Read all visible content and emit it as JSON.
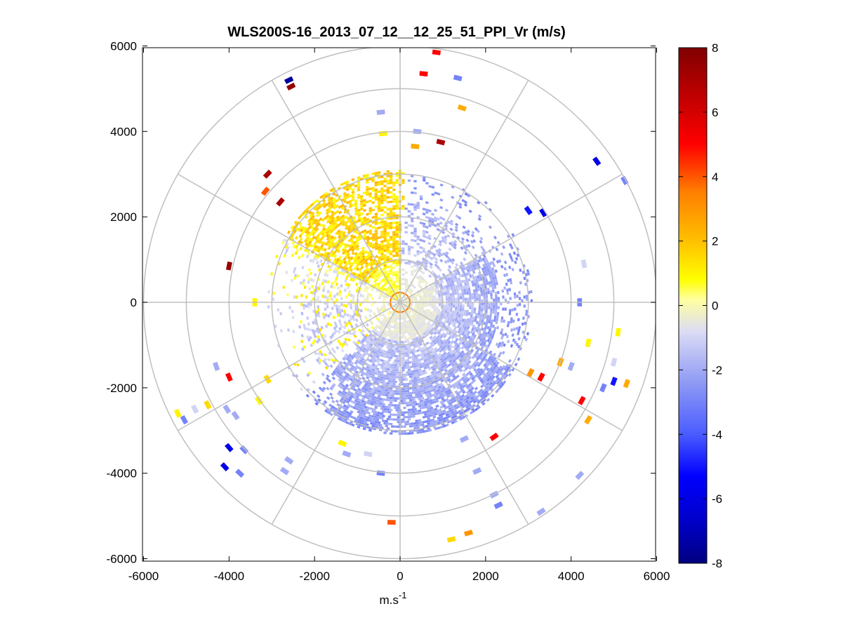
{
  "chart_data": {
    "type": "heatmap",
    "subtype": "polar-ppi",
    "title": "WLS200S-16_2013_07_12__12_25_51_PPI_Vr (m/s)",
    "xlabel_base": "m.s",
    "xlabel_sup": "-1",
    "ylabel": "",
    "xlim": [
      -6000,
      6000
    ],
    "ylim": [
      -6000,
      6000
    ],
    "xticks": [
      -6000,
      -4000,
      -2000,
      0,
      2000,
      4000,
      6000
    ],
    "yticks": [
      6000,
      4000,
      2000,
      0,
      -2000,
      -4000,
      -6000
    ],
    "xtick_labels": [
      "-6000",
      "-4000",
      "-2000",
      "0",
      "2000",
      "4000",
      "6000"
    ],
    "ytick_labels": [
      "6000",
      "4000",
      "2000",
      "0",
      "-2000",
      "-4000",
      "-6000"
    ],
    "range_rings": [
      1000,
      2000,
      3000,
      4000,
      5000,
      6000
    ],
    "radials_deg": [
      0,
      30,
      60,
      90,
      120,
      150,
      180,
      210,
      240,
      270,
      300,
      330
    ],
    "colorbar": {
      "min": -8,
      "max": 8,
      "ticks": [
        8,
        6,
        4,
        2,
        0,
        -2,
        -4,
        -6,
        -8
      ],
      "tick_labels": [
        "8",
        "6",
        "4",
        "2",
        "0",
        "-2",
        "-4",
        "-6",
        "-8"
      ],
      "colors": [
        "#000080",
        "#0000c8",
        "#0000ff",
        "#4a5cff",
        "#8a96f5",
        "#dcdcf5",
        "#ffffa0",
        "#ffff00",
        "#ffc000",
        "#ff8000",
        "#ff0000",
        "#c00000",
        "#800000"
      ]
    },
    "sparse_returns": [
      {
        "x": -2600,
        "y": 5200,
        "v": -7.5
      },
      {
        "x": -2550,
        "y": 5050,
        "v": 7.5
      },
      {
        "x": 850,
        "y": 5850,
        "v": 5
      },
      {
        "x": 550,
        "y": 5350,
        "v": 5
      },
      {
        "x": 1350,
        "y": 5250,
        "v": -3
      },
      {
        "x": 1450,
        "y": 4550,
        "v": 2.5
      },
      {
        "x": -450,
        "y": 4450,
        "v": -2
      },
      {
        "x": 400,
        "y": 4000,
        "v": -2
      },
      {
        "x": -400,
        "y": 3950,
        "v": 1
      },
      {
        "x": 950,
        "y": 3750,
        "v": 7
      },
      {
        "x": 350,
        "y": 3650,
        "v": 2.5
      },
      {
        "x": 4600,
        "y": 3300,
        "v": -6
      },
      {
        "x": 5250,
        "y": 2850,
        "v": -3
      },
      {
        "x": -3100,
        "y": 3000,
        "v": 7
      },
      {
        "x": -3150,
        "y": 2600,
        "v": 4
      },
      {
        "x": -2800,
        "y": 2350,
        "v": 7
      },
      {
        "x": -4000,
        "y": 850,
        "v": 7.5
      },
      {
        "x": 3350,
        "y": 2100,
        "v": -6
      },
      {
        "x": 3000,
        "y": 2150,
        "v": -5
      },
      {
        "x": 4200,
        "y": 0,
        "v": -3
      },
      {
        "x": 4300,
        "y": 900,
        "v": -1
      },
      {
        "x": -3400,
        "y": 0,
        "v": 1
      },
      {
        "x": 5100,
        "y": -700,
        "v": 1
      },
      {
        "x": 4400,
        "y": -950,
        "v": 1
      },
      {
        "x": 5000,
        "y": -1400,
        "v": -1
      },
      {
        "x": 5300,
        "y": -1900,
        "v": 2.5
      },
      {
        "x": 5000,
        "y": -1850,
        "v": -5
      },
      {
        "x": 4750,
        "y": -2000,
        "v": -3
      },
      {
        "x": 4250,
        "y": -2300,
        "v": 5
      },
      {
        "x": 4400,
        "y": -2750,
        "v": 2.5
      },
      {
        "x": 3300,
        "y": -1750,
        "v": 5
      },
      {
        "x": 3050,
        "y": -1650,
        "v": 3
      },
      {
        "x": 3750,
        "y": -1400,
        "v": 2.5
      },
      {
        "x": 4000,
        "y": -1500,
        "v": -2
      },
      {
        "x": 2200,
        "y": -3150,
        "v": 5
      },
      {
        "x": 1500,
        "y": -3200,
        "v": -2
      },
      {
        "x": 1800,
        "y": -3950,
        "v": -2
      },
      {
        "x": 2200,
        "y": -4500,
        "v": -2
      },
      {
        "x": 2300,
        "y": -4750,
        "v": -3
      },
      {
        "x": 3300,
        "y": -4900,
        "v": -2
      },
      {
        "x": 4200,
        "y": -4050,
        "v": -2
      },
      {
        "x": 1600,
        "y": -5400,
        "v": 3
      },
      {
        "x": 1200,
        "y": -5550,
        "v": 1.5
      },
      {
        "x": -200,
        "y": -5150,
        "v": 4
      },
      {
        "x": -450,
        "y": -4000,
        "v": -3
      },
      {
        "x": -750,
        "y": -3550,
        "v": -1
      },
      {
        "x": -1350,
        "y": -3300,
        "v": 1
      },
      {
        "x": -1250,
        "y": -3550,
        "v": -2
      },
      {
        "x": -2600,
        "y": -3700,
        "v": -2
      },
      {
        "x": -2700,
        "y": -3950,
        "v": -2
      },
      {
        "x": -3650,
        "y": -3450,
        "v": -3
      },
      {
        "x": -3750,
        "y": -4000,
        "v": -3
      },
      {
        "x": -4000,
        "y": -3400,
        "v": -6
      },
      {
        "x": -4100,
        "y": -3850,
        "v": -6
      },
      {
        "x": -5200,
        "y": -2600,
        "v": 1
      },
      {
        "x": -5050,
        "y": -2750,
        "v": -3
      },
      {
        "x": -4800,
        "y": -2500,
        "v": -1
      },
      {
        "x": -4500,
        "y": -2400,
        "v": 1.5
      },
      {
        "x": -4050,
        "y": -2500,
        "v": -2
      },
      {
        "x": -3850,
        "y": -2650,
        "v": -2
      },
      {
        "x": -4000,
        "y": -1750,
        "v": 5
      },
      {
        "x": -4300,
        "y": -1500,
        "v": -2
      },
      {
        "x": -3100,
        "y": -1800,
        "v": 1.5
      },
      {
        "x": -3300,
        "y": -2300,
        "v": 1
      }
    ],
    "dense_region": {
      "max_range": 3100,
      "description": "near-field returns",
      "northwest_velocity": 1.2,
      "east_south_velocity": -2.0
    }
  }
}
